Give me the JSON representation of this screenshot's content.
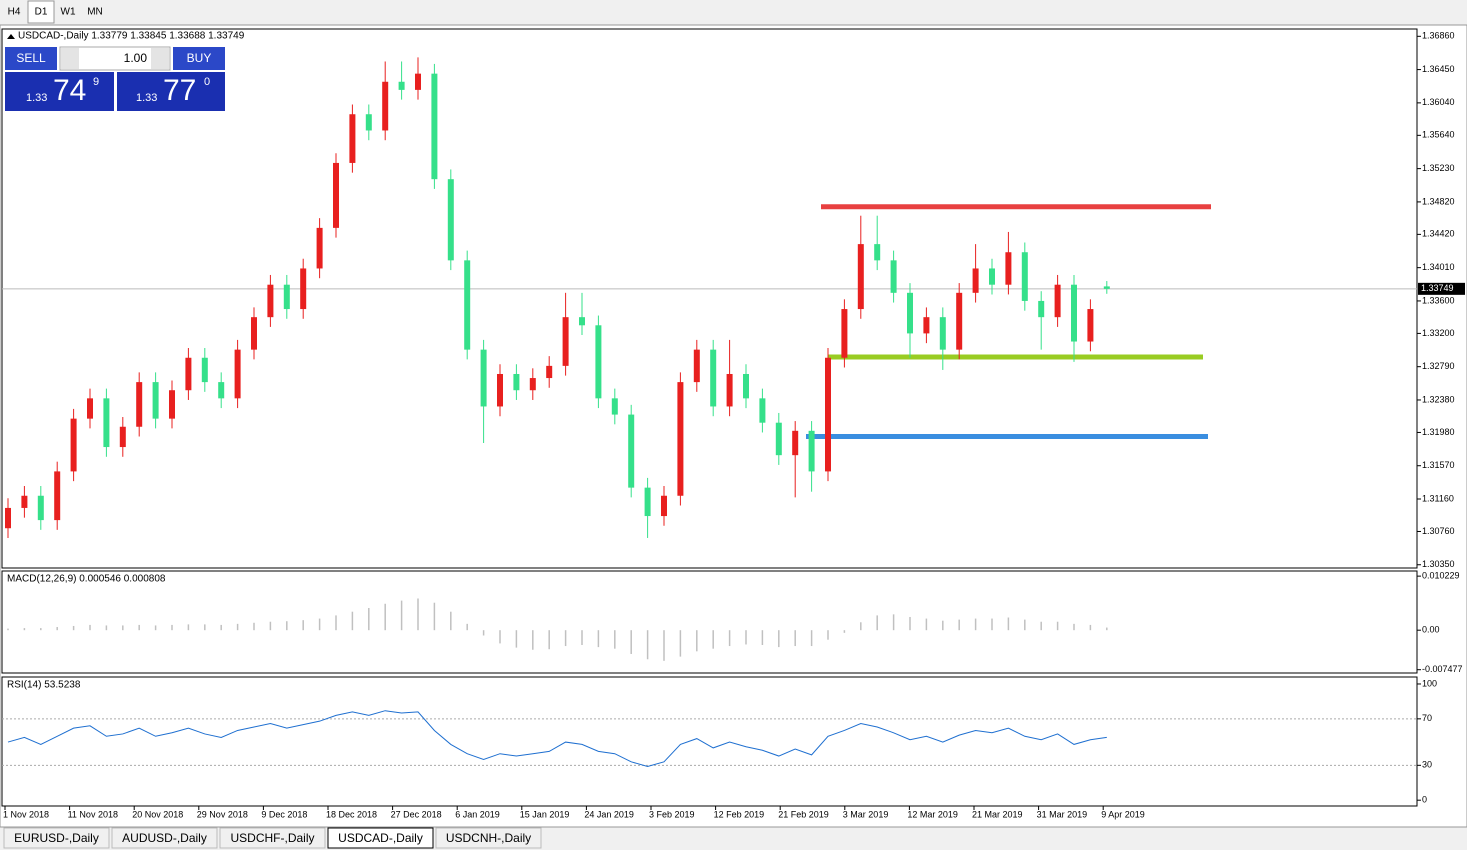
{
  "toolbar": {
    "timeframes": [
      "H4",
      "D1",
      "W1",
      "MN"
    ]
  },
  "trade_panel": {
    "sell": "SELL",
    "lot": "1.00",
    "buy": "BUY",
    "bid": {
      "big": "1.33",
      "pips": "74",
      "frac": "9"
    },
    "ask": {
      "big": "1.33",
      "pips": "77",
      "frac": "0"
    }
  },
  "chart_data": [
    {
      "type": "candlestick",
      "title": "USDCAD-,Daily 1.33779 1.33845 1.33688 1.33749",
      "open": [
        1.308,
        1.3105,
        1.312,
        1.309,
        1.315,
        1.3215,
        1.324,
        1.318,
        1.3205,
        1.326,
        1.3215,
        1.325,
        1.329,
        1.326,
        1.324,
        1.33,
        1.334,
        1.338,
        1.335,
        1.34,
        1.345,
        1.353,
        1.359,
        1.357,
        1.363,
        1.362,
        1.364,
        1.351,
        1.341,
        1.33,
        1.323,
        1.327,
        1.325,
        1.3265,
        1.328,
        1.334,
        1.333,
        1.324,
        1.322,
        1.313,
        1.3095,
        1.312,
        1.326,
        1.33,
        1.323,
        1.327,
        1.324,
        1.321,
        1.317,
        1.32,
        1.315,
        1.329,
        1.335,
        1.343,
        1.341,
        1.337,
        1.332,
        1.334,
        1.33,
        1.337,
        1.34,
        1.338,
        1.342,
        1.336,
        1.334,
        1.338,
        1.331,
        1.33779
      ],
      "high": [
        1.3117,
        1.3132,
        1.3132,
        1.3162,
        1.3227,
        1.3252,
        1.3252,
        1.3217,
        1.3272,
        1.3272,
        1.3262,
        1.3302,
        1.3302,
        1.3272,
        1.3312,
        1.3352,
        1.3392,
        1.3392,
        1.3412,
        1.3462,
        1.3542,
        1.3602,
        1.3602,
        1.3655,
        1.3655,
        1.366,
        1.3652,
        1.3522,
        1.3422,
        1.3312,
        1.3282,
        1.3282,
        1.3277,
        1.3292,
        1.337,
        1.337,
        1.3342,
        1.3252,
        1.3232,
        1.3142,
        1.3132,
        1.3272,
        1.3312,
        1.3312,
        1.3312,
        1.3282,
        1.3252,
        1.3222,
        1.3212,
        1.3212,
        1.3302,
        1.3362,
        1.3465,
        1.3465,
        1.3422,
        1.3382,
        1.3352,
        1.3352,
        1.3382,
        1.343,
        1.3412,
        1.3445,
        1.3432,
        1.3372,
        1.3392,
        1.3392,
        1.3362,
        1.33845
      ],
      "low": [
        1.3068,
        1.3093,
        1.3078,
        1.3078,
        1.3138,
        1.3203,
        1.3168,
        1.3168,
        1.3193,
        1.3203,
        1.3203,
        1.3238,
        1.3248,
        1.3228,
        1.3228,
        1.3288,
        1.3328,
        1.3338,
        1.3338,
        1.3388,
        1.3438,
        1.3518,
        1.3558,
        1.3558,
        1.3608,
        1.3608,
        1.3498,
        1.3398,
        1.3288,
        1.3185,
        1.3218,
        1.3238,
        1.3238,
        1.3253,
        1.3268,
        1.3318,
        1.3228,
        1.3208,
        1.3118,
        1.3068,
        1.3083,
        1.3108,
        1.3248,
        1.3218,
        1.3218,
        1.3228,
        1.3198,
        1.3158,
        1.3118,
        1.3125,
        1.3138,
        1.3278,
        1.3338,
        1.3398,
        1.3358,
        1.329,
        1.3308,
        1.3275,
        1.3288,
        1.3358,
        1.3368,
        1.3368,
        1.3348,
        1.33,
        1.3328,
        1.3285,
        1.3298,
        1.33688
      ],
      "close": [
        1.3105,
        1.312,
        1.309,
        1.315,
        1.3215,
        1.324,
        1.318,
        1.3205,
        1.326,
        1.3215,
        1.325,
        1.329,
        1.326,
        1.324,
        1.33,
        1.334,
        1.338,
        1.335,
        1.34,
        1.345,
        1.353,
        1.359,
        1.357,
        1.363,
        1.362,
        1.364,
        1.351,
        1.341,
        1.33,
        1.323,
        1.327,
        1.325,
        1.3265,
        1.328,
        1.334,
        1.333,
        1.324,
        1.322,
        1.313,
        1.3095,
        1.312,
        1.326,
        1.33,
        1.323,
        1.327,
        1.324,
        1.321,
        1.317,
        1.32,
        1.315,
        1.329,
        1.335,
        1.343,
        1.341,
        1.337,
        1.332,
        1.334,
        1.33,
        1.337,
        1.34,
        1.338,
        1.342,
        1.336,
        1.334,
        1.338,
        1.331,
        1.335,
        1.33749
      ],
      "rising_color": "#e8201f",
      "falling_color": "#35e08a",
      "ylim": [
        1.3031,
        1.3695
      ],
      "yticks": [
        {
          "value": 1.3686,
          "label": "1.36860"
        },
        {
          "value": 1.3645,
          "label": "1.36450"
        },
        {
          "value": 1.3604,
          "label": "1.36040"
        },
        {
          "value": 1.3564,
          "label": "1.35640"
        },
        {
          "value": 1.3523,
          "label": "1.35230"
        },
        {
          "value": 1.3482,
          "label": "1.34820"
        },
        {
          "value": 1.3442,
          "label": "1.34420"
        },
        {
          "value": 1.3401,
          "label": "1.34010"
        },
        {
          "value": 1.336,
          "label": "1.33600"
        },
        {
          "value": 1.332,
          "label": "1.33200"
        },
        {
          "value": 1.3279,
          "label": "1.32790"
        },
        {
          "value": 1.3238,
          "label": "1.32380"
        },
        {
          "value": 1.3198,
          "label": "1.31980"
        },
        {
          "value": 1.3157,
          "label": "1.31570"
        },
        {
          "value": 1.3116,
          "label": "1.31160"
        },
        {
          "value": 1.3076,
          "label": "1.30760"
        },
        {
          "value": 1.3035,
          "label": "1.30350"
        }
      ],
      "last_price": {
        "value": 1.33749,
        "label": "1.33749"
      },
      "levels": [
        {
          "value": 1.3476,
          "color": "#e84040"
        },
        {
          "value": 1.3291,
          "color": "#99cc22"
        },
        {
          "value": 1.3193,
          "color": "#3a8ee0"
        }
      ]
    },
    {
      "type": "bar",
      "title": "MACD(12,26,9) 0.000546 0.000808",
      "color": "#c0c0c0",
      "values": [
        0.0003,
        0.0004,
        0.0004,
        0.0006,
        0.0008,
        0.001,
        0.0009,
        0.0009,
        0.001,
        0.0009,
        0.001,
        0.0011,
        0.0011,
        0.001,
        0.0012,
        0.0014,
        0.0016,
        0.0017,
        0.0019,
        0.0022,
        0.0028,
        0.0035,
        0.0042,
        0.005,
        0.0056,
        0.006,
        0.0052,
        0.0035,
        0.0012,
        -0.001,
        -0.0025,
        -0.0033,
        -0.0037,
        -0.0036,
        -0.003,
        -0.0028,
        -0.0032,
        -0.0035,
        -0.0045,
        -0.0055,
        -0.0058,
        -0.005,
        -0.004,
        -0.0035,
        -0.003,
        -0.0027,
        -0.0028,
        -0.0032,
        -0.003,
        -0.003,
        -0.0018,
        -0.0005,
        0.0015,
        0.0028,
        0.003,
        0.0025,
        0.0022,
        0.0018,
        0.002,
        0.0022,
        0.0022,
        0.0024,
        0.002,
        0.0016,
        0.0016,
        0.0012,
        0.001,
        0.0005
      ],
      "ylim": [
        -0.0081,
        0.0112
      ],
      "yticks": [
        0.010229,
        {
          "value": 0,
          "label": "0.00"
        },
        -0.007477
      ]
    },
    {
      "type": "line",
      "title": "RSI(14) 53.5238",
      "color": "#1e6fd0",
      "values": [
        50,
        54,
        48,
        55,
        62,
        64,
        55,
        57,
        62,
        55,
        58,
        62,
        57,
        54,
        60,
        63,
        66,
        62,
        65,
        68,
        73,
        76,
        73,
        77,
        75,
        76,
        60,
        48,
        40,
        35,
        40,
        38,
        40,
        42,
        50,
        48,
        42,
        40,
        33,
        29,
        33,
        48,
        53,
        45,
        50,
        46,
        43,
        38,
        44,
        39,
        55,
        60,
        66,
        63,
        58,
        52,
        55,
        50,
        56,
        60,
        58,
        62,
        55,
        52,
        57,
        48,
        52,
        54
      ],
      "ylim": [
        -5,
        106
      ],
      "yticks": [
        100,
        70,
        30,
        0
      ],
      "dashed_grid": true,
      "x_labels": [
        "1 Nov 2018",
        "11 Nov 2018",
        "20 Nov 2018",
        "29 Nov 2018",
        "9 Dec 2018",
        "18 Dec 2018",
        "27 Dec 2018",
        "6 Jan 2019",
        "15 Jan 2019",
        "24 Jan 2019",
        "3 Feb 2019",
        "12 Feb 2019",
        "21 Feb 2019",
        "3 Mar 2019",
        "12 Mar 2019",
        "21 Mar 2019",
        "31 Mar 2019",
        "9 Apr 2019"
      ]
    }
  ],
  "tabs": {
    "items": [
      "EURUSD-,Daily",
      "AUDUSD-,Daily",
      "USDCHF-,Daily",
      "USDCAD-,Daily",
      "USDCNH-,Daily"
    ],
    "active": 3
  }
}
